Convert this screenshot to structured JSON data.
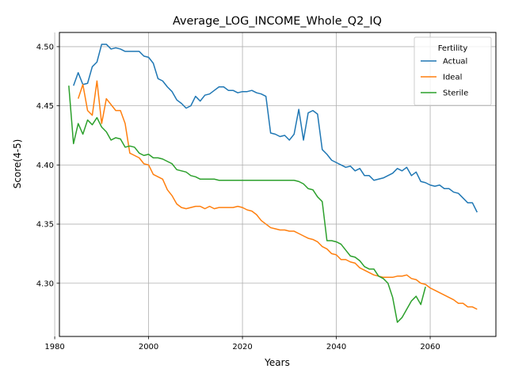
{
  "chart_data": {
    "type": "line",
    "title": "Average_LOG_INCOME_Whole_Q2_IQ",
    "xlabel": "Years",
    "ylabel": "Score(4-5)",
    "xlim": [
      1981,
      2074
    ],
    "ylim": [
      4.255,
      4.512
    ],
    "grid": true,
    "legend_position": "top-right",
    "legend_title": "Fertility",
    "xticks": [
      1980,
      2000,
      2020,
      2040,
      2060
    ],
    "xtick_labels": [
      "1980",
      "2000",
      "2020",
      "2040",
      "2060"
    ],
    "yticks": [
      4.3,
      4.35,
      4.4,
      4.45,
      4.5
    ],
    "ytick_labels": [
      "4.30",
      "4.35",
      "4.40",
      "4.45",
      "4.50"
    ],
    "series": [
      {
        "name": "Actual",
        "color": "#1f77b4",
        "points": [
          [
            1984,
            4.467
          ],
          [
            1985,
            4.478
          ],
          [
            1986,
            4.468
          ],
          [
            1987,
            4.469
          ],
          [
            1988,
            4.483
          ],
          [
            1989,
            4.487
          ],
          [
            1990,
            4.502
          ],
          [
            1991,
            4.502
          ],
          [
            1992,
            4.498
          ],
          [
            1993,
            4.499
          ],
          [
            1994,
            4.498
          ],
          [
            1995,
            4.496
          ],
          [
            1996,
            4.496
          ],
          [
            1997,
            4.496
          ],
          [
            1998,
            4.496
          ],
          [
            1999,
            4.492
          ],
          [
            2000,
            4.491
          ],
          [
            2001,
            4.486
          ],
          [
            2002,
            4.473
          ],
          [
            2003,
            4.471
          ],
          [
            2004,
            4.466
          ],
          [
            2005,
            4.462
          ],
          [
            2006,
            4.455
          ],
          [
            2007,
            4.452
          ],
          [
            2008,
            4.448
          ],
          [
            2009,
            4.45
          ],
          [
            2010,
            4.458
          ],
          [
            2011,
            4.454
          ],
          [
            2012,
            4.459
          ],
          [
            2013,
            4.46
          ],
          [
            2014,
            4.463
          ],
          [
            2015,
            4.466
          ],
          [
            2016,
            4.466
          ],
          [
            2017,
            4.463
          ],
          [
            2018,
            4.463
          ],
          [
            2019,
            4.461
          ],
          [
            2020,
            4.462
          ],
          [
            2021,
            4.462
          ],
          [
            2022,
            4.463
          ],
          [
            2023,
            4.461
          ],
          [
            2024,
            4.46
          ],
          [
            2025,
            4.458
          ],
          [
            2026,
            4.427
          ],
          [
            2027,
            4.426
          ],
          [
            2028,
            4.424
          ],
          [
            2029,
            4.425
          ],
          [
            2030,
            4.421
          ],
          [
            2031,
            4.426
          ],
          [
            2032,
            4.447
          ],
          [
            2033,
            4.421
          ],
          [
            2034,
            4.444
          ],
          [
            2035,
            4.446
          ],
          [
            2036,
            4.443
          ],
          [
            2037,
            4.413
          ],
          [
            2038,
            4.409
          ],
          [
            2039,
            4.404
          ],
          [
            2040,
            4.402
          ],
          [
            2041,
            4.4
          ],
          [
            2042,
            4.398
          ],
          [
            2043,
            4.399
          ],
          [
            2044,
            4.395
          ],
          [
            2045,
            4.397
          ],
          [
            2046,
            4.391
          ],
          [
            2047,
            4.391
          ],
          [
            2048,
            4.387
          ],
          [
            2049,
            4.388
          ],
          [
            2050,
            4.389
          ],
          [
            2051,
            4.391
          ],
          [
            2052,
            4.393
          ],
          [
            2053,
            4.397
          ],
          [
            2054,
            4.395
          ],
          [
            2055,
            4.398
          ],
          [
            2056,
            4.391
          ],
          [
            2057,
            4.394
          ],
          [
            2058,
            4.386
          ],
          [
            2059,
            4.385
          ],
          [
            2060,
            4.383
          ],
          [
            2061,
            4.382
          ],
          [
            2062,
            4.383
          ],
          [
            2063,
            4.38
          ],
          [
            2064,
            4.38
          ],
          [
            2065,
            4.377
          ],
          [
            2066,
            4.376
          ],
          [
            2067,
            4.372
          ],
          [
            2068,
            4.368
          ],
          [
            2069,
            4.368
          ],
          [
            2070,
            4.36
          ]
        ]
      },
      {
        "name": "Ideal",
        "color": "#ff7f0e",
        "points": [
          [
            1985,
            4.456
          ],
          [
            1986,
            4.468
          ],
          [
            1987,
            4.446
          ],
          [
            1988,
            4.442
          ],
          [
            1989,
            4.471
          ],
          [
            1990,
            4.435
          ],
          [
            1991,
            4.456
          ],
          [
            1992,
            4.451
          ],
          [
            1993,
            4.446
          ],
          [
            1994,
            4.446
          ],
          [
            1995,
            4.435
          ],
          [
            1996,
            4.41
          ],
          [
            1997,
            4.408
          ],
          [
            1998,
            4.406
          ],
          [
            1999,
            4.401
          ],
          [
            2000,
            4.4
          ],
          [
            2001,
            4.392
          ],
          [
            2002,
            4.39
          ],
          [
            2003,
            4.388
          ],
          [
            2004,
            4.379
          ],
          [
            2005,
            4.374
          ],
          [
            2006,
            4.367
          ],
          [
            2007,
            4.364
          ],
          [
            2008,
            4.363
          ],
          [
            2009,
            4.364
          ],
          [
            2010,
            4.365
          ],
          [
            2011,
            4.365
          ],
          [
            2012,
            4.363
          ],
          [
            2013,
            4.365
          ],
          [
            2014,
            4.363
          ],
          [
            2015,
            4.364
          ],
          [
            2016,
            4.364
          ],
          [
            2017,
            4.364
          ],
          [
            2018,
            4.364
          ],
          [
            2019,
            4.365
          ],
          [
            2020,
            4.364
          ],
          [
            2021,
            4.362
          ],
          [
            2022,
            4.361
          ],
          [
            2023,
            4.358
          ],
          [
            2024,
            4.353
          ],
          [
            2025,
            4.35
          ],
          [
            2026,
            4.347
          ],
          [
            2027,
            4.346
          ],
          [
            2028,
            4.345
          ],
          [
            2029,
            4.345
          ],
          [
            2030,
            4.344
          ],
          [
            2031,
            4.344
          ],
          [
            2032,
            4.342
          ],
          [
            2033,
            4.34
          ],
          [
            2034,
            4.338
          ],
          [
            2035,
            4.337
          ],
          [
            2036,
            4.335
          ],
          [
            2037,
            4.331
          ],
          [
            2038,
            4.329
          ],
          [
            2039,
            4.325
          ],
          [
            2040,
            4.324
          ],
          [
            2041,
            4.32
          ],
          [
            2042,
            4.32
          ],
          [
            2043,
            4.318
          ],
          [
            2044,
            4.317
          ],
          [
            2045,
            4.313
          ],
          [
            2046,
            4.311
          ],
          [
            2047,
            4.309
          ],
          [
            2048,
            4.307
          ],
          [
            2049,
            4.306
          ],
          [
            2050,
            4.305
          ],
          [
            2051,
            4.305
          ],
          [
            2052,
            4.305
          ],
          [
            2053,
            4.306
          ],
          [
            2054,
            4.306
          ],
          [
            2055,
            4.307
          ],
          [
            2056,
            4.304
          ],
          [
            2057,
            4.303
          ],
          [
            2058,
            4.3
          ],
          [
            2059,
            4.299
          ],
          [
            2060,
            4.296
          ],
          [
            2061,
            4.294
          ],
          [
            2062,
            4.292
          ],
          [
            2063,
            4.29
          ],
          [
            2064,
            4.288
          ],
          [
            2065,
            4.286
          ],
          [
            2066,
            4.283
          ],
          [
            2067,
            4.283
          ],
          [
            2068,
            4.28
          ],
          [
            2069,
            4.28
          ],
          [
            2070,
            4.278
          ]
        ]
      },
      {
        "name": "Sterile",
        "color": "#2ca02c",
        "points": [
          [
            1983,
            4.467
          ],
          [
            1984,
            4.418
          ],
          [
            1985,
            4.435
          ],
          [
            1986,
            4.426
          ],
          [
            1987,
            4.438
          ],
          [
            1988,
            4.434
          ],
          [
            1989,
            4.44
          ],
          [
            1990,
            4.432
          ],
          [
            1991,
            4.428
          ],
          [
            1992,
            4.421
          ],
          [
            1993,
            4.423
          ],
          [
            1994,
            4.422
          ],
          [
            1995,
            4.415
          ],
          [
            1996,
            4.416
          ],
          [
            1997,
            4.415
          ],
          [
            1998,
            4.41
          ],
          [
            1999,
            4.408
          ],
          [
            2000,
            4.409
          ],
          [
            2001,
            4.406
          ],
          [
            2002,
            4.406
          ],
          [
            2003,
            4.405
          ],
          [
            2004,
            4.403
          ],
          [
            2005,
            4.401
          ],
          [
            2006,
            4.396
          ],
          [
            2007,
            4.395
          ],
          [
            2008,
            4.394
          ],
          [
            2009,
            4.391
          ],
          [
            2010,
            4.39
          ],
          [
            2011,
            4.388
          ],
          [
            2012,
            4.388
          ],
          [
            2013,
            4.388
          ],
          [
            2014,
            4.388
          ],
          [
            2015,
            4.387
          ],
          [
            2016,
            4.387
          ],
          [
            2017,
            4.387
          ],
          [
            2018,
            4.387
          ],
          [
            2019,
            4.387
          ],
          [
            2020,
            4.387
          ],
          [
            2021,
            4.387
          ],
          [
            2022,
            4.387
          ],
          [
            2023,
            4.387
          ],
          [
            2024,
            4.387
          ],
          [
            2025,
            4.387
          ],
          [
            2026,
            4.387
          ],
          [
            2027,
            4.387
          ],
          [
            2028,
            4.387
          ],
          [
            2029,
            4.387
          ],
          [
            2030,
            4.387
          ],
          [
            2031,
            4.387
          ],
          [
            2032,
            4.386
          ],
          [
            2033,
            4.384
          ],
          [
            2034,
            4.38
          ],
          [
            2035,
            4.379
          ],
          [
            2036,
            4.373
          ],
          [
            2037,
            4.369
          ],
          [
            2038,
            4.336
          ],
          [
            2039,
            4.336
          ],
          [
            2040,
            4.335
          ],
          [
            2041,
            4.333
          ],
          [
            2042,
            4.328
          ],
          [
            2043,
            4.323
          ],
          [
            2044,
            4.322
          ],
          [
            2045,
            4.319
          ],
          [
            2046,
            4.314
          ],
          [
            2047,
            4.312
          ],
          [
            2048,
            4.312
          ],
          [
            2049,
            4.306
          ],
          [
            2050,
            4.304
          ],
          [
            2051,
            4.3
          ],
          [
            2052,
            4.288
          ],
          [
            2053,
            4.267
          ],
          [
            2054,
            4.271
          ],
          [
            2055,
            4.278
          ],
          [
            2056,
            4.285
          ],
          [
            2057,
            4.289
          ],
          [
            2058,
            4.282
          ],
          [
            2059,
            4.297
          ]
        ]
      }
    ]
  }
}
